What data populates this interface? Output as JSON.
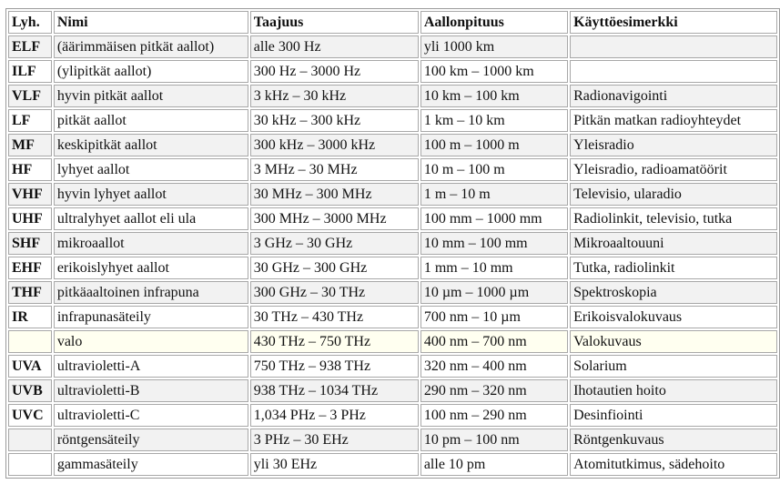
{
  "table": {
    "headers": [
      "Lyh.",
      "Nimi",
      "Taajuus",
      "Aallonpituus",
      "Käyttöesimerkki"
    ],
    "rows": [
      [
        "ELF",
        "(äärimmäisen pitkät aallot)",
        "alle 300 Hz",
        "yli 1000 km",
        ""
      ],
      [
        "ILF",
        "(ylipitkät aallot)",
        "300 Hz – 3000 Hz",
        "100 km – 1000 km",
        ""
      ],
      [
        "VLF",
        "hyvin pitkät aallot",
        "3 kHz – 30 kHz",
        "10 km – 100 km",
        "Radionavigointi"
      ],
      [
        "LF",
        "pitkät aallot",
        "30 kHz – 300 kHz",
        "1 km – 10 km",
        "Pitkän matkan radioyhteydet"
      ],
      [
        "MF",
        "keskipitkät aallot",
        "300 kHz – 3000 kHz",
        "100 m – 1000 m",
        "Yleisradio"
      ],
      [
        "HF",
        "lyhyet aallot",
        "3 MHz – 30 MHz",
        "10 m – 100 m",
        "Yleisradio, radioamatöörit"
      ],
      [
        "VHF",
        "hyvin lyhyet aallot",
        "30 MHz – 300 MHz",
        "1 m – 10 m",
        "Televisio, ularadio"
      ],
      [
        "UHF",
        "ultralyhyet aallot eli ula",
        "300 MHz – 3000 MHz",
        "100 mm – 1000 mm",
        "Radiolinkit, televisio, tutka"
      ],
      [
        "SHF",
        "mikroaallot",
        "3 GHz – 30 GHz",
        "10 mm – 100 mm",
        "Mikroaaltouuni"
      ],
      [
        "EHF",
        "erikoislyhyet aallot",
        "30 GHz – 300 GHz",
        "1 mm – 10 mm",
        "Tutka, radiolinkit"
      ],
      [
        "THF",
        "pitkäaaltoinen infrapuna",
        "300 GHz – 30 THz",
        "10 µm – 1000 µm",
        "Spektroskopia"
      ],
      [
        "IR",
        "infrapunasäteily",
        "30 THz – 430 THz",
        "700 nm – 10 µm",
        "Erikoisvalokuvaus"
      ],
      [
        "",
        "valo",
        "430 THz – 750 THz",
        "400 nm – 700 nm",
        "Valokuvaus"
      ],
      [
        "UVA",
        "ultravioletti-A",
        "750 THz – 938 THz",
        "320 nm – 400 nm",
        "Solarium"
      ],
      [
        "UVB",
        "ultravioletti-B",
        "938 THz – 1034 THz",
        "290 nm – 320 nm",
        "Ihotautien hoito"
      ],
      [
        "UVC",
        "ultravioletti-C",
        "1,034 PHz – 3 PHz",
        "100 nm – 290 nm",
        "Desinfiointi"
      ],
      [
        "",
        "röntgensäteily",
        "3 PHz – 30 EHz",
        "10 pm – 100 nm",
        "Röntgenkuvaus"
      ],
      [
        "",
        "gammasäteily",
        "yli 30 EHz",
        "alle 10 pm",
        "Atomitutkimus, sädehoito"
      ]
    ],
    "row_tints": [
      "alt",
      "white",
      "alt",
      "white",
      "alt",
      "white",
      "alt",
      "white",
      "alt",
      "white",
      "alt",
      "white",
      "light",
      "white",
      "alt",
      "white",
      "alt",
      "white"
    ]
  }
}
